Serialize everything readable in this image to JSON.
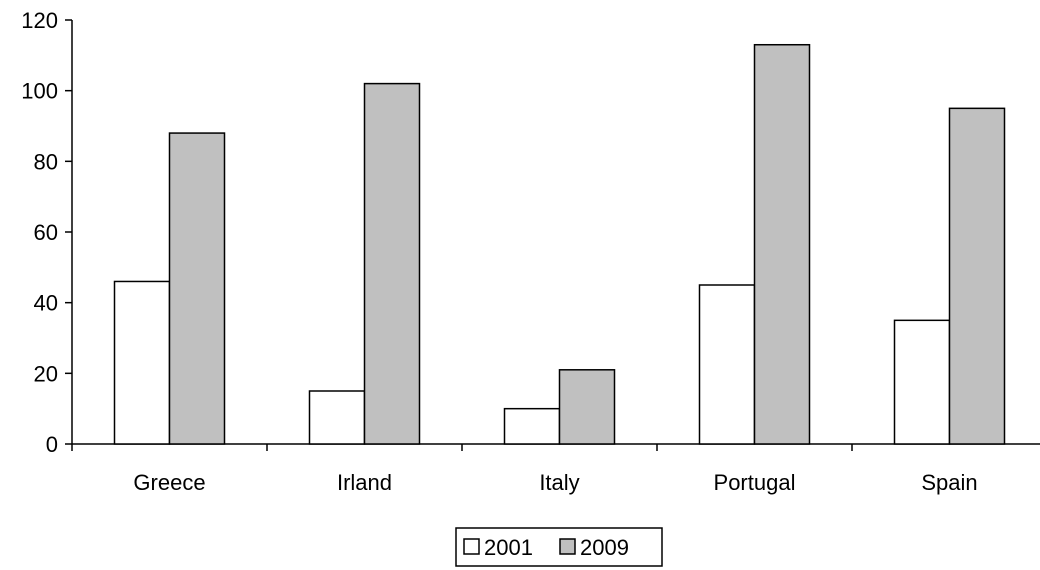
{
  "chart_data": {
    "type": "bar",
    "categories": [
      "Greece",
      "Irland",
      "Italy",
      "Portugal",
      "Spain"
    ],
    "series": [
      {
        "name": "2001",
        "values": [
          46,
          15,
          10,
          45,
          35
        ],
        "color": "#ffffff"
      },
      {
        "name": "2009",
        "values": [
          88,
          102,
          21,
          113,
          95
        ],
        "color": "#c0c0c0"
      }
    ],
    "title": "",
    "xlabel": "",
    "ylabel": "",
    "ylim": [
      0,
      120
    ],
    "yticks": [
      0,
      20,
      40,
      60,
      80,
      100,
      120
    ],
    "grid": false,
    "legend_position": "bottom-center"
  }
}
